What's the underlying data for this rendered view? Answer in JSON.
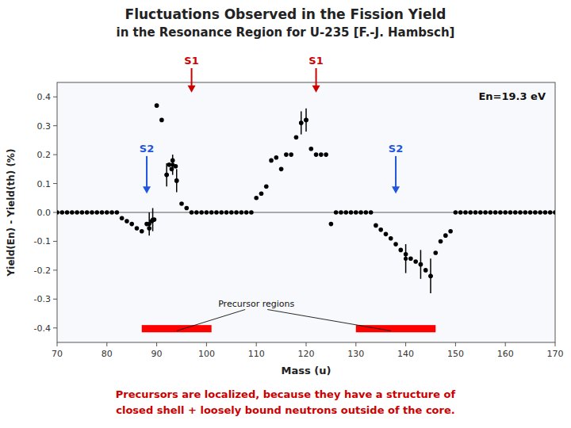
{
  "chart_data": {
    "type": "scatter",
    "title": "Fluctuations Observed in the Fission Yield",
    "subtitle": "in the Resonance Region for U-235  [F.-J. Hambsch]",
    "xlabel": "Mass (u)",
    "ylabel": "Yield(En) - Yield(th) (%)",
    "xlim": [
      70,
      170
    ],
    "ylim": [
      -0.45,
      0.45
    ],
    "xticks": [
      70,
      80,
      90,
      100,
      110,
      120,
      130,
      140,
      150,
      160,
      170
    ],
    "yticks": [
      -0.4,
      -0.3,
      -0.2,
      -0.1,
      {
        "value": 0.0,
        "label": "0.0"
      },
      0.1,
      0.2,
      0.3,
      0.4
    ],
    "series": [
      {
        "type": "scatter",
        "color": "#000000",
        "x": [
          70,
          71,
          72,
          73,
          74,
          75,
          76,
          77,
          78,
          79,
          80,
          81,
          82,
          83,
          84,
          85,
          86,
          87,
          88,
          88.5,
          89,
          89.5,
          90,
          91,
          92,
          92.5,
          93,
          93.2,
          93.8,
          94,
          95,
          96,
          97,
          98,
          99,
          100,
          101,
          102,
          103,
          104,
          105,
          106,
          107,
          108,
          109,
          110,
          111,
          112,
          113,
          114,
          115,
          116,
          117,
          118,
          119,
          120,
          121,
          122,
          123,
          124,
          125,
          126,
          127,
          128,
          129,
          130,
          131,
          132,
          133,
          134,
          135,
          136,
          137,
          138,
          139,
          140,
          141,
          142,
          143,
          144,
          145,
          146,
          147,
          148,
          149,
          150,
          151,
          152,
          153,
          154,
          155,
          156,
          157,
          158,
          159,
          160,
          161,
          162,
          163,
          164,
          165,
          166,
          167,
          168,
          169,
          170
        ],
        "values": [
          0.0,
          0.0,
          0.0,
          0.0,
          0.0,
          0.0,
          0.0,
          0.0,
          0.0,
          0.0,
          0.0,
          0.0,
          0.0,
          -0.02,
          -0.03,
          -0.04,
          -0.055,
          -0.065,
          -0.04,
          -0.055,
          -0.03,
          -0.025,
          0.37,
          0.32,
          0.13,
          0.165,
          0.15,
          0.18,
          0.16,
          0.11,
          0.03,
          0.015,
          0.0,
          0.0,
          0.0,
          0.0,
          0.0,
          0.0,
          0.0,
          0.0,
          0.0,
          0.0,
          0.0,
          0.0,
          0.0,
          0.05,
          0.065,
          0.09,
          0.18,
          0.19,
          0.15,
          0.2,
          0.2,
          0.26,
          0.31,
          0.32,
          0.22,
          0.2,
          0.2,
          0.2,
          -0.04,
          0.0,
          0.0,
          0.0,
          0.0,
          0.0,
          0.0,
          0.0,
          0.0,
          -0.045,
          -0.06,
          -0.075,
          -0.09,
          -0.11,
          -0.13,
          -0.145,
          -0.16,
          -0.17,
          -0.18,
          -0.2,
          -0.22,
          -0.14,
          -0.1,
          -0.08,
          -0.065,
          0.0,
          0.0,
          0.0,
          0.0,
          0.0,
          0.0,
          0.0,
          0.0,
          0.0,
          0.0,
          0.0,
          0.0,
          0.0,
          0.0,
          0.0,
          0.0,
          0.0,
          0.0,
          0.0,
          0.0,
          0.0
        ]
      },
      {
        "type": "errorbar",
        "color": "#000000",
        "x": [
          88.5,
          89.2,
          92,
          93.2,
          94,
          119,
          120,
          140,
          143,
          145
        ],
        "values": [
          -0.04,
          -0.025,
          0.13,
          0.165,
          0.11,
          0.31,
          0.32,
          -0.16,
          -0.18,
          -0.22
        ],
        "errors": [
          0.04,
          0.04,
          0.04,
          0.035,
          0.04,
          0.04,
          0.04,
          0.05,
          0.05,
          0.06
        ]
      }
    ],
    "reference_line": 0,
    "energy_label": "En=19.3 eV",
    "regions": {
      "label": "Precursor regions",
      "label_x": 110,
      "label_y": -0.295,
      "targets": [
        [
          94,
          -0.41
        ],
        [
          137,
          -0.41
        ]
      ],
      "color": "red",
      "bars": [
        {
          "start": 87,
          "end": 101,
          "bottom": -0.415,
          "height": 0.025
        },
        {
          "start": 130,
          "end": 146,
          "bottom": -0.415,
          "height": 0.025
        }
      ]
    },
    "arrows": [
      {
        "label": "S1",
        "x": 97,
        "y_to": 0.415,
        "color": "#cc0000"
      },
      {
        "label": "S1",
        "x": 122,
        "y_to": 0.415,
        "color": "#cc0000"
      },
      {
        "label": "S2",
        "x": 88,
        "y_from": 0.195,
        "y_to": 0.065,
        "color": "#2255dd"
      },
      {
        "label": "S2",
        "x": 138,
        "y_from": 0.195,
        "y_to": 0.065,
        "color": "#2255dd"
      }
    ],
    "footnote": {
      "lines": [
        "Precursors are localized, because they have a structure of",
        "closed shell + loosely bound neutrons outside of the core."
      ],
      "color": "#cc0000"
    }
  }
}
